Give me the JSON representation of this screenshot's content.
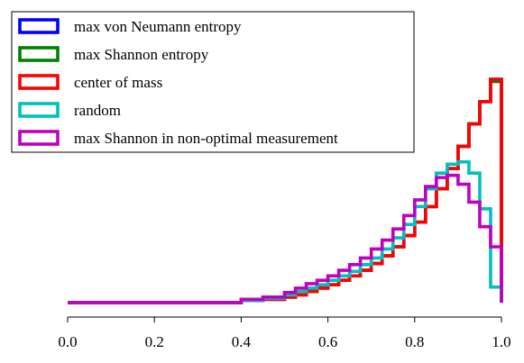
{
  "chart_data": {
    "type": "step-histogram",
    "title": "",
    "xlabel": "",
    "ylabel": "",
    "xlim": [
      0.0,
      1.0
    ],
    "ylim": [
      0.0,
      1.0
    ],
    "grid": false,
    "y_axis_shown": false,
    "legend_position": "upper-left",
    "x_ticks": [
      "0.0",
      "0.2",
      "0.4",
      "0.6",
      "0.8",
      "1.0"
    ],
    "x_tick_values": [
      0.0,
      0.2,
      0.4,
      0.6,
      0.8,
      1.0
    ],
    "bins": [
      0.0,
      0.4,
      0.45,
      0.5,
      0.525,
      0.55,
      0.575,
      0.6,
      0.625,
      0.65,
      0.675,
      0.7,
      0.725,
      0.75,
      0.775,
      0.8,
      0.825,
      0.85,
      0.875,
      0.9,
      0.925,
      0.95,
      0.975,
      1.0
    ],
    "series": [
      {
        "name": "max von Neumann entropy",
        "color": "#0000ff",
        "values": [
          0.0,
          0.01,
          0.015,
          0.025,
          0.035,
          0.05,
          0.065,
          0.08,
          0.1,
          0.12,
          0.145,
          0.175,
          0.21,
          0.25,
          0.3,
          0.36,
          0.43,
          0.51,
          0.6,
          0.7,
          0.8,
          0.9,
          1.0
        ]
      },
      {
        "name": "max Shannon entropy",
        "color": "#008000",
        "values": [
          0.0,
          0.01,
          0.015,
          0.025,
          0.035,
          0.05,
          0.065,
          0.08,
          0.1,
          0.12,
          0.145,
          0.175,
          0.21,
          0.25,
          0.3,
          0.36,
          0.43,
          0.51,
          0.6,
          0.7,
          0.8,
          0.9,
          0.99
        ]
      },
      {
        "name": "center of mass",
        "color": "#ff0000",
        "values": [
          0.0,
          0.01,
          0.015,
          0.025,
          0.035,
          0.05,
          0.065,
          0.08,
          0.1,
          0.12,
          0.145,
          0.175,
          0.21,
          0.25,
          0.3,
          0.36,
          0.43,
          0.51,
          0.6,
          0.7,
          0.8,
          0.9,
          1.0
        ]
      },
      {
        "name": "random",
        "color": "#00bfbf",
        "values": [
          0.0,
          0.01,
          0.02,
          0.035,
          0.05,
          0.065,
          0.08,
          0.1,
          0.12,
          0.14,
          0.17,
          0.2,
          0.24,
          0.29,
          0.35,
          0.43,
          0.51,
          0.58,
          0.62,
          0.63,
          0.58,
          0.42,
          0.07
        ]
      },
      {
        "name": "max Shannon in non-optimal measurement",
        "color": "#bf00bf",
        "values": [
          0.0,
          0.015,
          0.025,
          0.045,
          0.065,
          0.085,
          0.1,
          0.12,
          0.145,
          0.17,
          0.2,
          0.24,
          0.28,
          0.33,
          0.39,
          0.46,
          0.52,
          0.56,
          0.57,
          0.53,
          0.45,
          0.34,
          0.25
        ]
      }
    ]
  }
}
